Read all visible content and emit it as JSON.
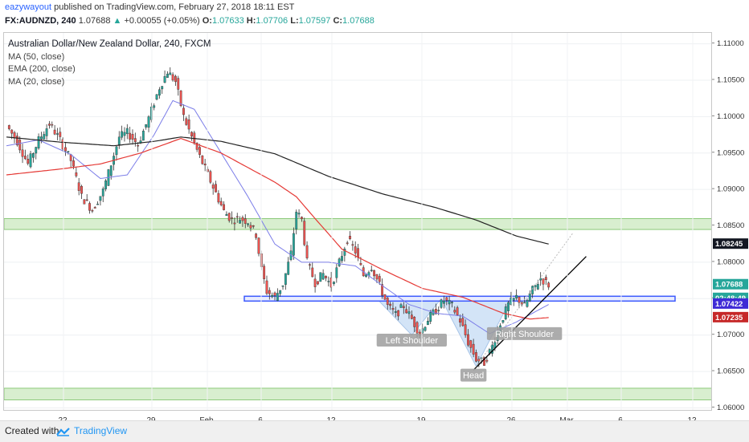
{
  "header": {
    "author": "eazywayout",
    "published": " published on TradingView.com, February 27, 2018 18:11 EST"
  },
  "quote": {
    "symbol": "FX:AUDNZD, 240",
    "last": "1.07688",
    "change": "+0.00055 (+0.05%)",
    "o_label": "O:",
    "o": "1.07633",
    "h_label": "H:",
    "h": "1.07706",
    "l_label": "L:",
    "l": "1.07597",
    "c_label": "C:",
    "c": "1.07688"
  },
  "legend": {
    "title": "Australian Dollar/New Zealand Dollar, 240, FXCM",
    "ma50": "MA (50, close)",
    "ema200": "EMA (200, close)",
    "ma20": "MA (20, close)"
  },
  "footer": {
    "created_with": "Created with",
    "brand": "TradingView"
  },
  "colors": {
    "up": "#26a69a",
    "down": "#ef5350",
    "ma50": "#e53935",
    "ema200": "#212121",
    "ma20": "#7b7de8",
    "zone_fill": "#d8eecf",
    "zone_stroke": "#8cc97a",
    "neckline": "#3d5afe",
    "pattern_fill": "#cfe2f7",
    "trendline": "#000000"
  },
  "chart_data": {
    "type": "candlestick",
    "y_range": [
      1.0595,
      1.1115
    ],
    "price_ticks": [
      "1.11000",
      "1.10500",
      "1.10000",
      "1.09500",
      "1.09000",
      "1.08500",
      "1.08000",
      "1.07500",
      "1.07000",
      "1.06500",
      "1.06000"
    ],
    "time_labels": [
      "22",
      "29",
      "Feb",
      "6",
      "12",
      "19",
      "26",
      "Mar",
      "6",
      "12"
    ],
    "price_badges": [
      {
        "label": "1.08245",
        "value": 1.08245,
        "bg": "#131722",
        "fg": "#ffffff"
      },
      {
        "label": "1.07688",
        "value": 1.07688,
        "bg": "#26a69a",
        "fg": "#ffffff"
      },
      {
        "label": "02:48:49",
        "value": 1.075,
        "bg": "#26a69a",
        "fg": "#ffffff"
      },
      {
        "label": "1.07422",
        "value": 1.07422,
        "bg": "#3f2bd6",
        "fg": "#ffffff"
      },
      {
        "label": "1.07235",
        "value": 1.07235,
        "bg": "#c62828",
        "fg": "#ffffff"
      }
    ],
    "zones": [
      {
        "name": "resistance-zone",
        "low": 1.0845,
        "high": 1.086
      },
      {
        "name": "support-zone",
        "low": 1.0611,
        "high": 1.0627
      }
    ],
    "neckline": {
      "value": 1.075
    },
    "pattern_labels": [
      "Left Shoulder",
      "Head",
      "Right Shoulder"
    ],
    "anchors": [
      {
        "i": 0,
        "p": 1.0988
      },
      {
        "i": 4,
        "p": 1.0966
      },
      {
        "i": 8,
        "p": 1.0935
      },
      {
        "i": 12,
        "p": 1.0968
      },
      {
        "i": 16,
        "p": 1.099
      },
      {
        "i": 20,
        "p": 1.0968
      },
      {
        "i": 24,
        "p": 1.094
      },
      {
        "i": 28,
        "p": 1.089
      },
      {
        "i": 32,
        "p": 1.0872
      },
      {
        "i": 36,
        "p": 1.0898
      },
      {
        "i": 39,
        "p": 1.0935
      },
      {
        "i": 42,
        "p": 1.0972
      },
      {
        "i": 45,
        "p": 1.0978
      },
      {
        "i": 49,
        "p": 1.0962
      },
      {
        "i": 53,
        "p": 1.0998
      },
      {
        "i": 57,
        "p": 1.104
      },
      {
        "i": 60,
        "p": 1.1062
      },
      {
        "i": 63,
        "p": 1.1048
      },
      {
        "i": 66,
        "p": 1.1
      },
      {
        "i": 69,
        "p": 1.0972
      },
      {
        "i": 72,
        "p": 1.0945
      },
      {
        "i": 75,
        "p": 1.092
      },
      {
        "i": 78,
        "p": 1.0895
      },
      {
        "i": 81,
        "p": 1.087
      },
      {
        "i": 84,
        "p": 1.0858
      },
      {
        "i": 87,
        "p": 1.086
      },
      {
        "i": 90,
        "p": 1.0856
      },
      {
        "i": 93,
        "p": 1.0838
      },
      {
        "i": 95,
        "p": 1.079
      },
      {
        "i": 97,
        "p": 1.076
      },
      {
        "i": 100,
        "p": 1.0752
      },
      {
        "i": 103,
        "p": 1.077
      },
      {
        "i": 106,
        "p": 1.0812
      },
      {
        "i": 108,
        "p": 1.087
      },
      {
        "i": 110,
        "p": 1.0858
      },
      {
        "i": 112,
        "p": 1.08
      },
      {
        "i": 115,
        "p": 1.0772
      },
      {
        "i": 118,
        "p": 1.0784
      },
      {
        "i": 121,
        "p": 1.0768
      },
      {
        "i": 124,
        "p": 1.08
      },
      {
        "i": 127,
        "p": 1.0832
      },
      {
        "i": 130,
        "p": 1.0815
      },
      {
        "i": 133,
        "p": 1.0782
      },
      {
        "i": 136,
        "p": 1.0794
      },
      {
        "i": 139,
        "p": 1.0768
      },
      {
        "i": 142,
        "p": 1.074
      },
      {
        "i": 145,
        "p": 1.0728
      },
      {
        "i": 148,
        "p": 1.074
      },
      {
        "i": 151,
        "p": 1.0722
      },
      {
        "i": 154,
        "p": 1.0702
      },
      {
        "i": 157,
        "p": 1.0722
      },
      {
        "i": 160,
        "p": 1.0734
      },
      {
        "i": 163,
        "p": 1.0748
      },
      {
        "i": 166,
        "p": 1.074
      },
      {
        "i": 169,
        "p": 1.072
      },
      {
        "i": 172,
        "p": 1.069
      },
      {
        "i": 175,
        "p": 1.0667
      },
      {
        "i": 178,
        "p": 1.0662
      },
      {
        "i": 181,
        "p": 1.0685
      },
      {
        "i": 184,
        "p": 1.0716
      },
      {
        "i": 187,
        "p": 1.0742
      },
      {
        "i": 190,
        "p": 1.0752
      },
      {
        "i": 193,
        "p": 1.074
      },
      {
        "i": 196,
        "p": 1.0762
      },
      {
        "i": 199,
        "p": 1.0778
      },
      {
        "i": 202,
        "p": 1.0769
      }
    ],
    "ema200": [
      {
        "i": 0,
        "p": 1.0972
      },
      {
        "i": 20,
        "p": 1.0965
      },
      {
        "i": 40,
        "p": 1.096
      },
      {
        "i": 55,
        "p": 1.0966
      },
      {
        "i": 65,
        "p": 1.0972
      },
      {
        "i": 80,
        "p": 1.0966
      },
      {
        "i": 100,
        "p": 1.0949
      },
      {
        "i": 120,
        "p": 1.0918
      },
      {
        "i": 140,
        "p": 1.0894
      },
      {
        "i": 160,
        "p": 1.0875
      },
      {
        "i": 175,
        "p": 1.0858
      },
      {
        "i": 190,
        "p": 1.0836
      },
      {
        "i": 202,
        "p": 1.0825
      }
    ],
    "ma50": [
      {
        "i": 0,
        "p": 1.092
      },
      {
        "i": 20,
        "p": 1.0928
      },
      {
        "i": 35,
        "p": 1.0935
      },
      {
        "i": 50,
        "p": 1.095
      },
      {
        "i": 65,
        "p": 1.097
      },
      {
        "i": 80,
        "p": 1.095
      },
      {
        "i": 100,
        "p": 1.091
      },
      {
        "i": 108,
        "p": 1.089
      },
      {
        "i": 115,
        "p": 1.086
      },
      {
        "i": 125,
        "p": 1.0818
      },
      {
        "i": 140,
        "p": 1.079
      },
      {
        "i": 155,
        "p": 1.0764
      },
      {
        "i": 170,
        "p": 1.0752
      },
      {
        "i": 185,
        "p": 1.073
      },
      {
        "i": 195,
        "p": 1.0722
      },
      {
        "i": 202,
        "p": 1.0724
      }
    ],
    "ma20": [
      {
        "i": 0,
        "p": 1.096
      },
      {
        "i": 12,
        "p": 1.0968
      },
      {
        "i": 24,
        "p": 1.0948
      },
      {
        "i": 35,
        "p": 1.0915
      },
      {
        "i": 45,
        "p": 1.092
      },
      {
        "i": 55,
        "p": 1.0975
      },
      {
        "i": 62,
        "p": 1.1022
      },
      {
        "i": 70,
        "p": 1.101
      },
      {
        "i": 80,
        "p": 1.095
      },
      {
        "i": 90,
        "p": 1.089
      },
      {
        "i": 100,
        "p": 1.0825
      },
      {
        "i": 110,
        "p": 1.08
      },
      {
        "i": 120,
        "p": 1.08
      },
      {
        "i": 130,
        "p": 1.0795
      },
      {
        "i": 140,
        "p": 1.0768
      },
      {
        "i": 150,
        "p": 1.0742
      },
      {
        "i": 160,
        "p": 1.073
      },
      {
        "i": 170,
        "p": 1.0726
      },
      {
        "i": 180,
        "p": 1.0702
      },
      {
        "i": 190,
        "p": 1.0718
      },
      {
        "i": 202,
        "p": 1.0742
      }
    ]
  }
}
